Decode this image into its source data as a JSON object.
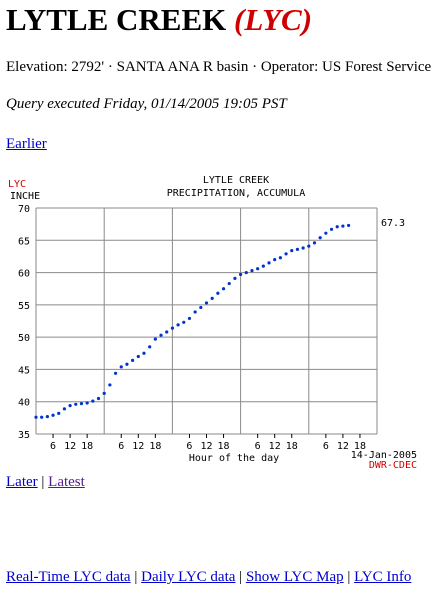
{
  "header": {
    "station_name": "LYTLE CREEK",
    "station_code": "(LYC)"
  },
  "meta": {
    "line": "Elevation: 2792' · SANTA ANA R basin · Operator: US Forest Service",
    "query": "Query executed Friday, 01/14/2005 19:05 PST"
  },
  "nav": {
    "earlier": "Earlier",
    "later": "Later",
    "separator": "|",
    "latest": "Latest"
  },
  "footer": {
    "realtime": "Real-Time LYC data",
    "daily": "Daily LYC data",
    "map": "Show LYC Map",
    "info": "LYC Info",
    "separator": "|"
  },
  "colors": {
    "station_code": "#d00000",
    "series": "#0033cc",
    "grid": "#8a8a8a",
    "link": "#0000cc",
    "visited_link": "#551a8b"
  },
  "chart_data": {
    "type": "scatter",
    "station_label": "LYC",
    "unit_label": "INCHE",
    "title": "LYTLE CREEK",
    "subtitle": "PRECIPITATION, ACCUMULA",
    "xlabel": "Hour of the day",
    "date_label": "14-Jan-2005",
    "source_label": "DWR-CDEC",
    "current_value_label": "67.3",
    "ylim": [
      35,
      70
    ],
    "yticks": [
      35,
      40,
      45,
      50,
      55,
      60,
      65,
      70
    ],
    "x_tick_labels": [
      "6",
      "12",
      "18",
      "6",
      "12",
      "18",
      "6",
      "12",
      "18",
      "6",
      "12",
      "18",
      "6",
      "12",
      "18"
    ],
    "x_tick_hours": [
      6,
      12,
      18,
      30,
      36,
      42,
      54,
      60,
      66,
      78,
      84,
      90,
      102,
      108,
      114
    ],
    "xlim_hours": [
      0,
      120
    ],
    "grid": true,
    "series": [
      {
        "x": [
          0,
          2,
          4,
          6,
          8,
          10,
          12,
          14,
          16,
          18,
          20,
          22,
          24,
          26,
          28,
          30,
          32,
          34,
          36,
          38,
          40,
          42,
          44,
          46,
          48,
          50,
          52,
          54,
          56,
          58,
          60,
          62,
          64,
          66,
          68,
          70,
          72,
          74,
          76,
          78,
          80,
          82,
          84,
          86,
          88,
          90,
          92,
          94,
          96,
          98,
          100,
          102,
          104,
          106,
          108,
          110
        ],
        "y": [
          37.6,
          37.6,
          37.7,
          37.9,
          38.2,
          38.9,
          39.4,
          39.6,
          39.7,
          39.8,
          40.1,
          40.5,
          41.3,
          42.6,
          44.4,
          45.4,
          45.8,
          46.4,
          47.0,
          47.5,
          48.5,
          49.7,
          50.3,
          50.8,
          51.4,
          51.9,
          52.3,
          52.9,
          53.9,
          54.6,
          55.3,
          56.0,
          56.8,
          57.5,
          58.3,
          59.1,
          59.7,
          60.0,
          60.3,
          60.6,
          61.0,
          61.5,
          62.0,
          62.3,
          62.9,
          63.4,
          63.6,
          63.8,
          64.1,
          64.6,
          65.4,
          66.1,
          66.7,
          67.1,
          67.2,
          67.3
        ]
      }
    ]
  }
}
